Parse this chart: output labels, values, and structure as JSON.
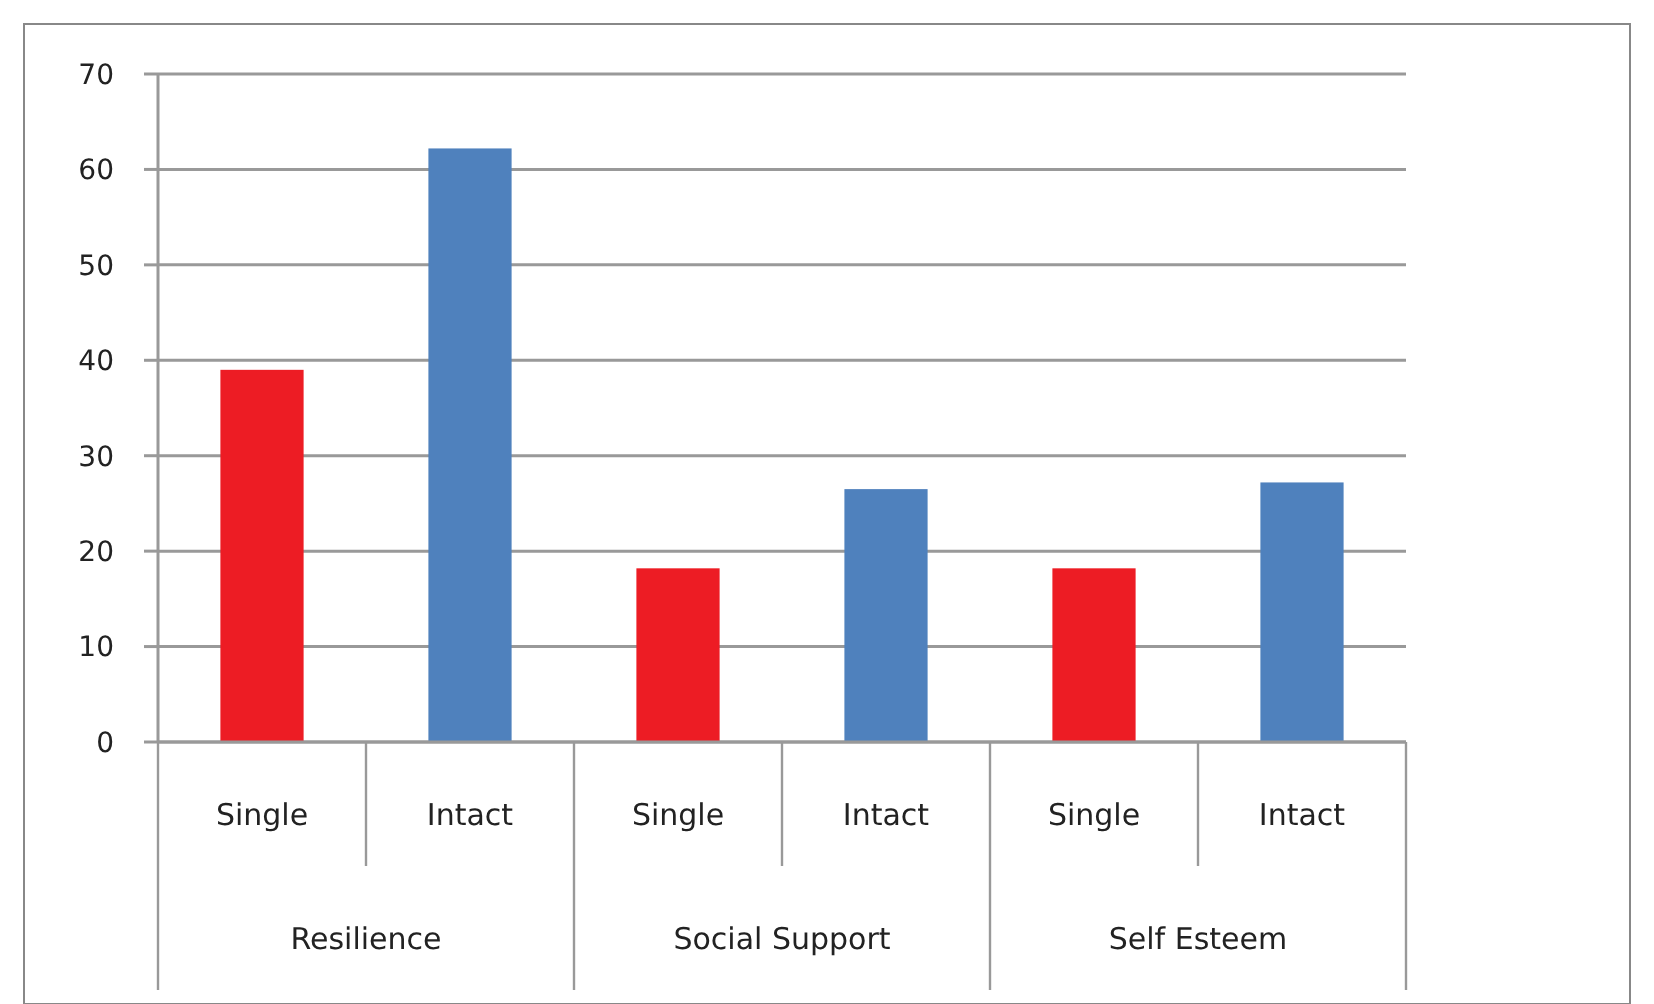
{
  "chart_data": {
    "type": "bar",
    "categories": [
      "Single",
      "Intact",
      "Single",
      "Intact",
      "Single",
      "Intact"
    ],
    "values": [
      39,
      62.2,
      18.2,
      26.5,
      18.2,
      27.2
    ],
    "colors": [
      "#ed1c24",
      "#4f81bd",
      "#ed1c24",
      "#4f81bd",
      "#ed1c24",
      "#4f81bd"
    ],
    "annotations": [
      "Resilience",
      "Social Support",
      "Self Esteem"
    ],
    "ylim": [
      0,
      70
    ],
    "yticks": [
      0,
      10,
      20,
      30,
      40,
      50,
      60,
      70
    ],
    "grid": "y"
  }
}
